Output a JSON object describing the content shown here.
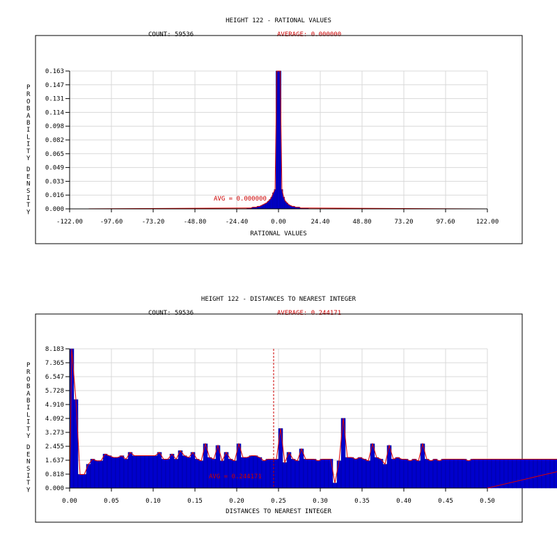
{
  "chart_data": [
    {
      "type": "bar",
      "title": "HEIGHT 122 - RATIONAL VALUES",
      "count_label": "COUNT: 59536",
      "average_label": "AVERAGE: 0.000000",
      "avg_marker_label": "AVG = 0.000000",
      "xlabel": "RATIONAL VALUES",
      "ylabel": "PROBABILITY DENSITY",
      "xlim": [
        -122.0,
        122.0
      ],
      "ylim": [
        0.0,
        0.163
      ],
      "average": 0.0,
      "x_ticks": [
        "-122.00",
        "-97.60",
        "-73.20",
        "-48.80",
        "-24.40",
        "0.00",
        "24.40",
        "48.80",
        "73.20",
        "97.60",
        "122.00"
      ],
      "y_ticks": [
        "0.000",
        "0.016",
        "0.033",
        "0.049",
        "0.065",
        "0.082",
        "0.098",
        "0.114",
        "0.131",
        "0.147",
        "0.163"
      ],
      "bin_width": 1.0,
      "bins": [
        {
          "x": -18,
          "y": 0.001
        },
        {
          "x": -17,
          "y": 0.001
        },
        {
          "x": -16,
          "y": 0.001
        },
        {
          "x": -15,
          "y": 0.002
        },
        {
          "x": -14,
          "y": 0.002
        },
        {
          "x": -13,
          "y": 0.002
        },
        {
          "x": -12,
          "y": 0.003
        },
        {
          "x": -11,
          "y": 0.003
        },
        {
          "x": -10,
          "y": 0.004
        },
        {
          "x": -9,
          "y": 0.005
        },
        {
          "x": -8,
          "y": 0.006
        },
        {
          "x": -7,
          "y": 0.007
        },
        {
          "x": -6,
          "y": 0.009
        },
        {
          "x": -5,
          "y": 0.011
        },
        {
          "x": -4,
          "y": 0.014
        },
        {
          "x": -3,
          "y": 0.019
        },
        {
          "x": -2,
          "y": 0.023
        },
        {
          "x": -1,
          "y": 0.163
        },
        {
          "x": 0,
          "y": 0.163
        },
        {
          "x": 1,
          "y": 0.163
        },
        {
          "x": 2,
          "y": 0.023
        },
        {
          "x": 3,
          "y": 0.014
        },
        {
          "x": 4,
          "y": 0.009
        },
        {
          "x": 5,
          "y": 0.007
        },
        {
          "x": 6,
          "y": 0.005
        },
        {
          "x": 7,
          "y": 0.004
        },
        {
          "x": 8,
          "y": 0.003
        },
        {
          "x": 9,
          "y": 0.003
        },
        {
          "x": 10,
          "y": 0.002
        },
        {
          "x": 11,
          "y": 0.002
        },
        {
          "x": 12,
          "y": 0.002
        },
        {
          "x": 13,
          "y": 0.001
        },
        {
          "x": 14,
          "y": 0.001
        },
        {
          "x": 15,
          "y": 0.001
        },
        {
          "x": 16,
          "y": 0.001
        },
        {
          "x": 17,
          "y": 0.001
        }
      ],
      "colors": {
        "bar_fill": "#0000cc",
        "bar_edge": "#00008b",
        "curve": "#dd0000",
        "grid": "#d8d8d8",
        "text": "#000000",
        "accent_text": "#cc0000"
      }
    },
    {
      "type": "bar",
      "title": "HEIGHT 122 - DISTANCES TO NEAREST INTEGER",
      "count_label": "COUNT: 59536",
      "average_label": "AVERAGE: 0.244171",
      "avg_marker_label": "AVG = 0.244171",
      "xlabel": "DISTANCES TO NEAREST INTEGER",
      "ylabel": "PROBABILITY DENSITY",
      "xlim": [
        0.0,
        0.5
      ],
      "ylim": [
        0.0,
        8.183
      ],
      "average": 0.244171,
      "x_ticks": [
        "0.00",
        "0.05",
        "0.10",
        "0.15",
        "0.20",
        "0.25",
        "0.30",
        "0.35",
        "0.40",
        "0.45",
        "0.50"
      ],
      "y_ticks": [
        "0.000",
        "0.818",
        "1.637",
        "2.455",
        "3.273",
        "4.092",
        "4.910",
        "5.728",
        "6.547",
        "7.365",
        "8.183"
      ],
      "bin_width": 0.005,
      "values": [
        8.183,
        5.2,
        0.8,
        0.8,
        1.4,
        1.7,
        1.6,
        1.6,
        2.0,
        1.9,
        1.8,
        1.8,
        1.9,
        1.7,
        2.1,
        1.9,
        1.9,
        1.9,
        1.9,
        1.9,
        1.9,
        2.1,
        1.7,
        1.7,
        2.0,
        1.7,
        2.2,
        1.9,
        1.8,
        2.1,
        1.7,
        1.6,
        2.6,
        1.8,
        1.7,
        2.5,
        1.6,
        2.1,
        1.7,
        1.6,
        2.6,
        1.8,
        1.8,
        1.9,
        1.9,
        1.8,
        1.6,
        1.7,
        1.7,
        1.7,
        3.5,
        1.5,
        2.1,
        1.7,
        1.6,
        2.3,
        1.7,
        1.7,
        1.7,
        1.6,
        1.7,
        1.7,
        1.7,
        0.3,
        1.6,
        4.1,
        1.8,
        1.8,
        1.7,
        1.8,
        1.7,
        1.6,
        2.6,
        1.8,
        1.7,
        1.4,
        2.5,
        1.7,
        1.8,
        1.7,
        1.7,
        1.6,
        1.7,
        1.6,
        2.6,
        1.7,
        1.6,
        1.7,
        1.6,
        1.7,
        1.7,
        1.7,
        1.7,
        1.7,
        1.7,
        1.6,
        1.7,
        1.7,
        1.7,
        1.7,
        1.7,
        1.7,
        1.7,
        1.7,
        1.7,
        1.7,
        1.7,
        1.7,
        1.7,
        1.7,
        1.7,
        1.7,
        1.7,
        1.7,
        1.7,
        1.7,
        1.7,
        1.7,
        1.7,
        1.7,
        1.7,
        1.7,
        1.7,
        1.7,
        1.7,
        1.7,
        1.7,
        1.7,
        1.7,
        1.7
      ],
      "colors": {
        "bar_fill": "#0000cc",
        "bar_edge": "#00008b",
        "curve": "#dd0000",
        "grid": "#d8d8d8",
        "text": "#000000",
        "accent_text": "#cc0000"
      }
    }
  ]
}
